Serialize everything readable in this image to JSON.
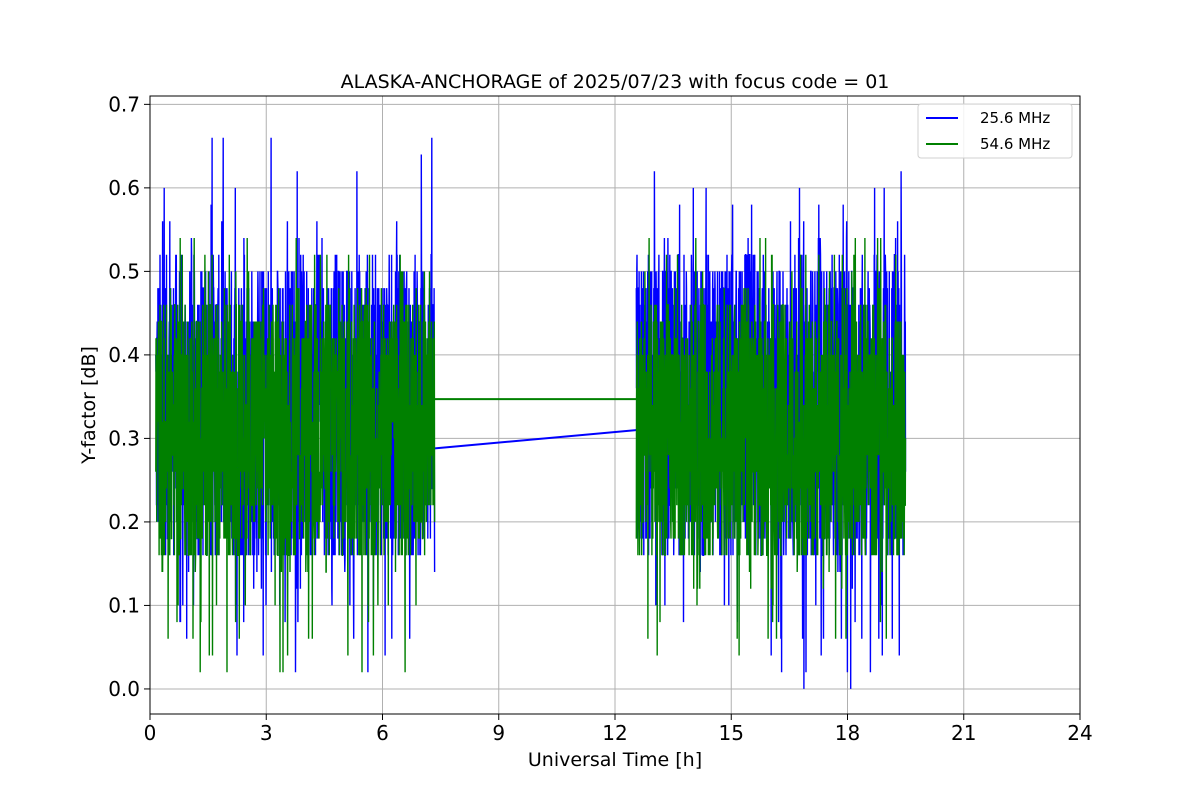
{
  "chart_data": {
    "type": "line",
    "title": "ALASKA-ANCHORAGE of 2025/07/23 with focus code = 01",
    "xlabel": "Universal Time [h]",
    "ylabel": "Y-factor [dB]",
    "xlim": [
      0,
      24
    ],
    "ylim": [
      -0.03,
      0.71
    ],
    "xticks": [
      "0",
      "3",
      "6",
      "9",
      "12",
      "15",
      "18",
      "21",
      "24"
    ],
    "yticks": [
      "0.0",
      "0.1",
      "0.2",
      "0.3",
      "0.4",
      "0.5",
      "0.6",
      "0.7"
    ],
    "grid": true,
    "legend_position": "top-right",
    "series": [
      {
        "name": "25.6 MHz",
        "color": "#0000ff",
        "segments": [
          {
            "x_start": 0.15,
            "x_end": 7.35,
            "min": 0.02,
            "max": 0.675,
            "typical_low": 0.15,
            "typical_high": 0.52
          },
          {
            "x_start": 12.55,
            "x_end": 19.5,
            "min": 0.0,
            "max": 0.62,
            "typical_low": 0.15,
            "typical_high": 0.52
          }
        ],
        "gap_line": {
          "x": [
            7.35,
            12.55
          ],
          "y": [
            0.288,
            0.31
          ]
        }
      },
      {
        "name": "54.6 MHz",
        "color": "#008000",
        "segments": [
          {
            "x_start": 0.15,
            "x_end": 7.35,
            "min": 0.0,
            "max": 0.54,
            "typical_low": 0.15,
            "typical_high": 0.47
          },
          {
            "x_start": 12.55,
            "x_end": 19.5,
            "min": 0.04,
            "max": 0.54,
            "typical_low": 0.15,
            "typical_high": 0.46
          }
        ],
        "gap_line": {
          "x": [
            7.35,
            12.55
          ],
          "y": [
            0.347,
            0.347
          ]
        }
      }
    ]
  }
}
